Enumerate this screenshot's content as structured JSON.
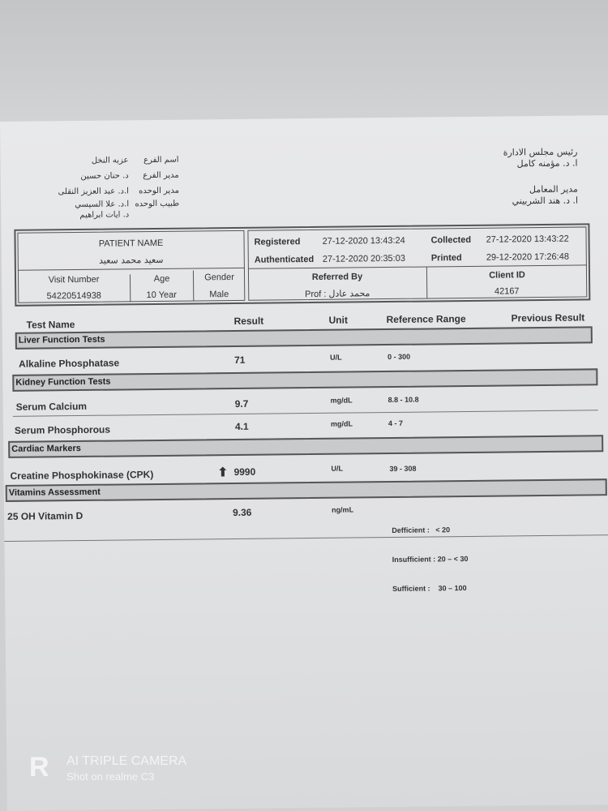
{
  "header_right": {
    "line1": "رئيس مجلس الادارة",
    "line2": "ا. د. مؤمنه كامل",
    "line3": "مدير المعامل",
    "line4": "ا. د. هند الشربيني"
  },
  "header_left": [
    {
      "label": "اسم الفرع",
      "value": "عزبه النخل"
    },
    {
      "label": "مدير الفرع",
      "value": "د. حنان حسين"
    },
    {
      "label": "مدير الوحده",
      "value": "ا.د. عبد العزيز النقلى"
    },
    {
      "label": "طبيب الوحده",
      "value": "ا.د. علا السيسي"
    },
    {
      "label": "",
      "value": "د. ايات ابراهيم"
    }
  ],
  "patient": {
    "name_label": "PATIENT NAME",
    "name": "سعيد محمد سعيد",
    "visit_label": "Visit Number",
    "visit": "54220514938",
    "age_label": "Age",
    "age": "10 Year",
    "gender_label": "Gender",
    "gender": "Male"
  },
  "dates": {
    "registered_label": "Registered",
    "registered": "27-12-2020 13:43:24",
    "collected_label": "Collected",
    "collected": "27-12-2020 13:43:22",
    "authenticated_label": "Authenticated",
    "authenticated": "27-12-2020 20:35:03",
    "printed_label": "Printed",
    "printed": "29-12-2020 17:26:48",
    "referred_label": "Referred By",
    "referred": "Prof : محمد عادل",
    "client_label": "Client ID",
    "client": "42167"
  },
  "columns": [
    "Test Name",
    "Result",
    "Unit",
    "Reference Range",
    "Previous Result"
  ],
  "sections": [
    "Liver Function Tests",
    "Kidney Function Tests",
    "Cardiac Markers",
    "Vitamins Assessment"
  ],
  "tests": [
    {
      "name": "Alkaline Phosphatase",
      "result": "71",
      "unit": "U/L",
      "range": "0 - 300"
    },
    {
      "name": "Serum Calcium",
      "result": "9.7",
      "unit": "mg/dL",
      "range": "8.8 - 10.8"
    },
    {
      "name": "Serum Phosphorous",
      "result": "4.1",
      "unit": "mg/dL",
      "range": "4 - 7"
    },
    {
      "name": "Creatine Phosphokinase (CPK)",
      "result": "9990",
      "unit": "U/L",
      "range": "39 - 308",
      "flag": "high"
    },
    {
      "name": "25 OH Vitamin D",
      "result": "9.36",
      "unit": "ng/mL",
      "range_lines": [
        "Defficient :   < 20",
        "Insufficient : 20 – < 30",
        "Sufficient :    30 – 100"
      ]
    }
  ],
  "watermark": {
    "brand": "R",
    "line1": "AI TRIPLE CAMERA",
    "line2": "Shot on realme C3"
  }
}
